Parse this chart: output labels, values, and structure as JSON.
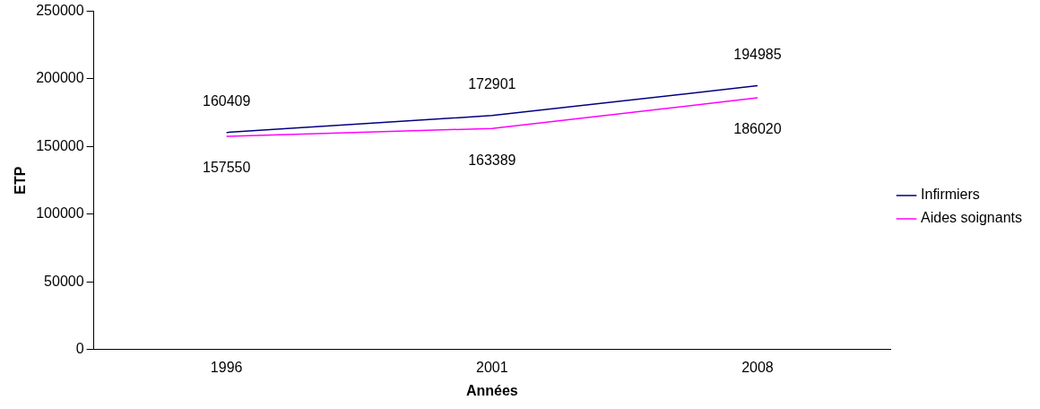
{
  "chart_data": {
    "type": "line",
    "xlabel": "Années",
    "ylabel": "ETP",
    "categories": [
      "1996",
      "2001",
      "2008"
    ],
    "series": [
      {
        "name": "Infirmiers",
        "color": "#000080",
        "values": [
          160409,
          172901,
          194985
        ]
      },
      {
        "name": "Aides soignants",
        "color": "#ff00ff",
        "values": [
          157550,
          163389,
          186020
        ]
      }
    ],
    "ylim": [
      0,
      250000
    ],
    "yticks": [
      0,
      50000,
      100000,
      150000,
      200000,
      250000
    ],
    "grid": false,
    "legend": "right",
    "data_labels": true,
    "marker": "none"
  }
}
